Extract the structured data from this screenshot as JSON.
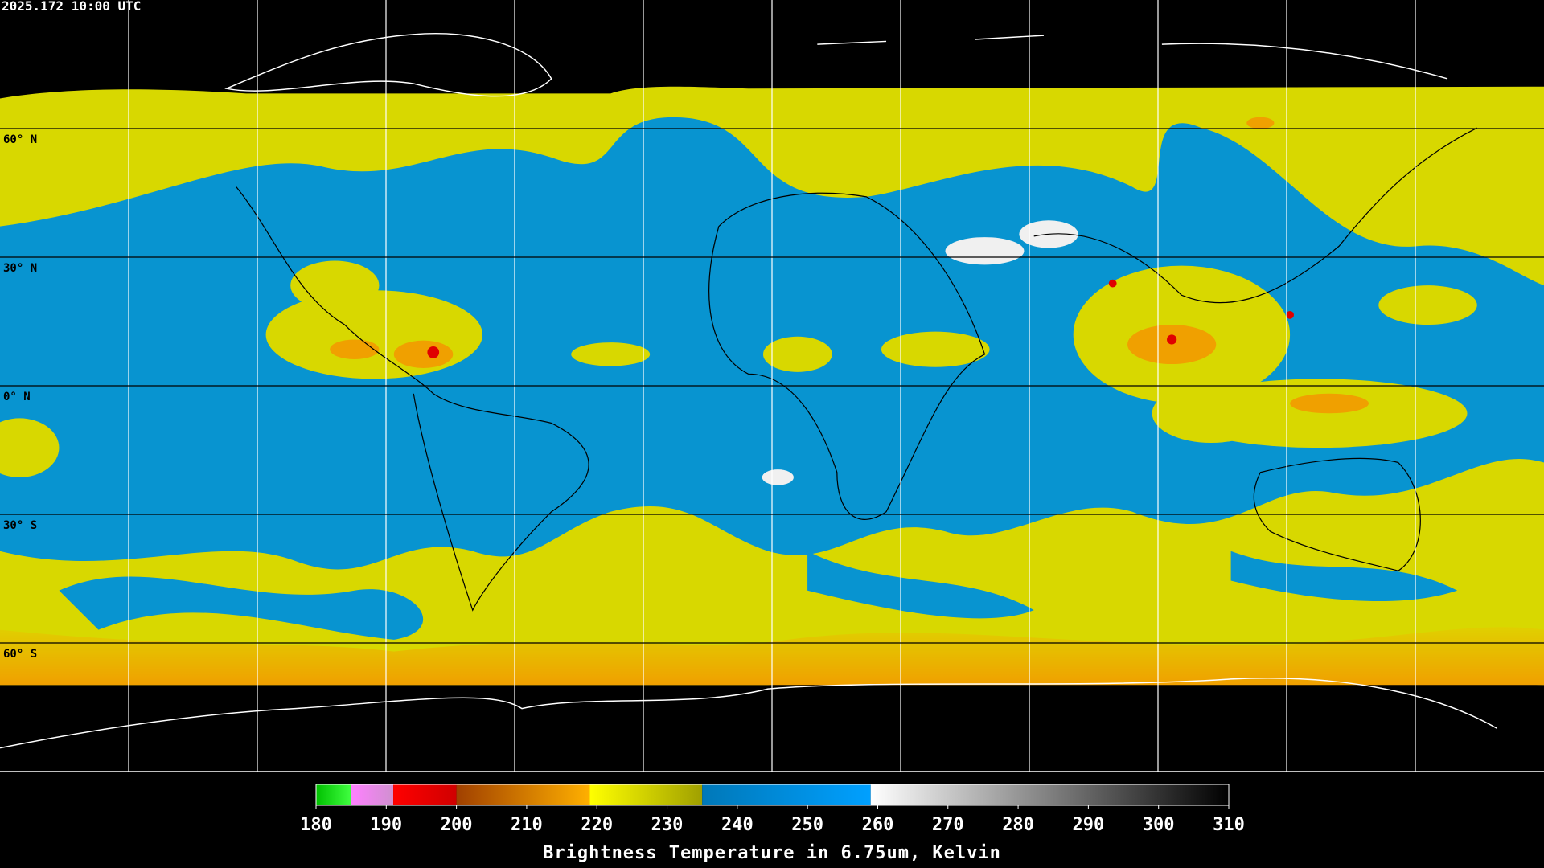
{
  "timestamp": "2025.172 10:00 UTC",
  "latitudes": [
    {
      "value": 60,
      "label": "60° N"
    },
    {
      "value": 30,
      "label": "30° N"
    },
    {
      "value": 0,
      "label": "0° N"
    },
    {
      "value": -30,
      "label": "30° S"
    },
    {
      "value": -60,
      "label": "60° S"
    }
  ],
  "colorbar": {
    "title": "Brightness Temperature in 6.75um, Kelvin",
    "range": [
      180,
      310
    ],
    "ticks": [
      180,
      190,
      200,
      210,
      220,
      230,
      240,
      250,
      260,
      270,
      280,
      290,
      300,
      310
    ],
    "segments": [
      {
        "from": 180,
        "to": 185,
        "colors": [
          "#00c000",
          "#40ff40"
        ]
      },
      {
        "from": 185,
        "to": 191,
        "colors": [
          "#ff80ff",
          "#d090d0"
        ]
      },
      {
        "from": 191,
        "to": 200,
        "colors": [
          "#ff0000",
          "#d00000"
        ]
      },
      {
        "from": 200,
        "to": 219,
        "colors": [
          "#a04000",
          "#ffb000"
        ]
      },
      {
        "from": 219,
        "to": 235,
        "colors": [
          "#ffff00",
          "#a0a000"
        ]
      },
      {
        "from": 235,
        "to": 259,
        "colors": [
          "#0078b8",
          "#00a0ff"
        ]
      },
      {
        "from": 259,
        "to": 310,
        "colors": [
          "#ffffff",
          "#000000"
        ]
      }
    ]
  }
}
